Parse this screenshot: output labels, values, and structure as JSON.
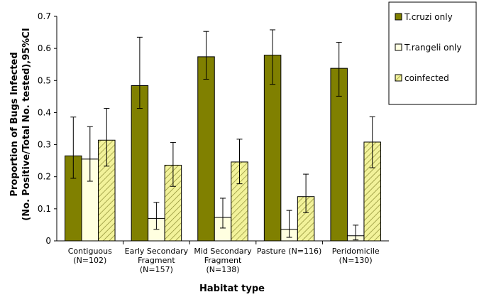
{
  "chart_data": {
    "type": "bar",
    "title": "",
    "xlabel": "Habitat type",
    "ylabel_lines": [
      "Proportion of Bugs Infected",
      "(No. Positive/Total No. tested),95%CI"
    ],
    "ylim": [
      0,
      0.7
    ],
    "yticks": [
      "0",
      "0.1",
      "0.2",
      "0.3",
      "0.4",
      "0.5",
      "0.6",
      "0.7"
    ],
    "ytick_values": [
      0,
      0.1,
      0.2,
      0.3,
      0.4,
      0.5,
      0.6,
      0.7
    ],
    "grid": false,
    "legend_position": "top-right",
    "categories": [
      [
        "Contiguous",
        "(N=102)"
      ],
      [
        "Early Secondary",
        "Fragment",
        "(N=157)"
      ],
      [
        "Mid Secondary",
        "Fragment",
        "(N=138)"
      ],
      [
        "Pasture (N=116)"
      ],
      [
        "Peridomicile",
        "(N=130)"
      ]
    ],
    "series": [
      {
        "name": "T.cruzi only",
        "color": "#808000",
        "pattern": "solid",
        "values": [
          0.265,
          0.484,
          0.574,
          0.579,
          0.538
        ],
        "ci_low": [
          0.195,
          0.413,
          0.504,
          0.488,
          0.451
        ],
        "ci_high": [
          0.386,
          0.635,
          0.653,
          0.658,
          0.619
        ]
      },
      {
        "name": "T.rangeli only",
        "color": "#FFFFE0",
        "pattern": "solid",
        "values": [
          0.255,
          0.07,
          0.073,
          0.036,
          0.016
        ],
        "ci_low": [
          0.186,
          0.036,
          0.04,
          0.011,
          0.003
        ],
        "ci_high": [
          0.356,
          0.12,
          0.133,
          0.095,
          0.049
        ]
      },
      {
        "name": "coinfected",
        "color": "#F2F29A",
        "pattern": "hatch",
        "values": [
          0.314,
          0.236,
          0.246,
          0.138,
          0.308
        ],
        "ci_low": [
          0.233,
          0.17,
          0.178,
          0.088,
          0.228
        ],
        "ci_high": [
          0.413,
          0.307,
          0.317,
          0.208,
          0.387
        ]
      }
    ]
  }
}
